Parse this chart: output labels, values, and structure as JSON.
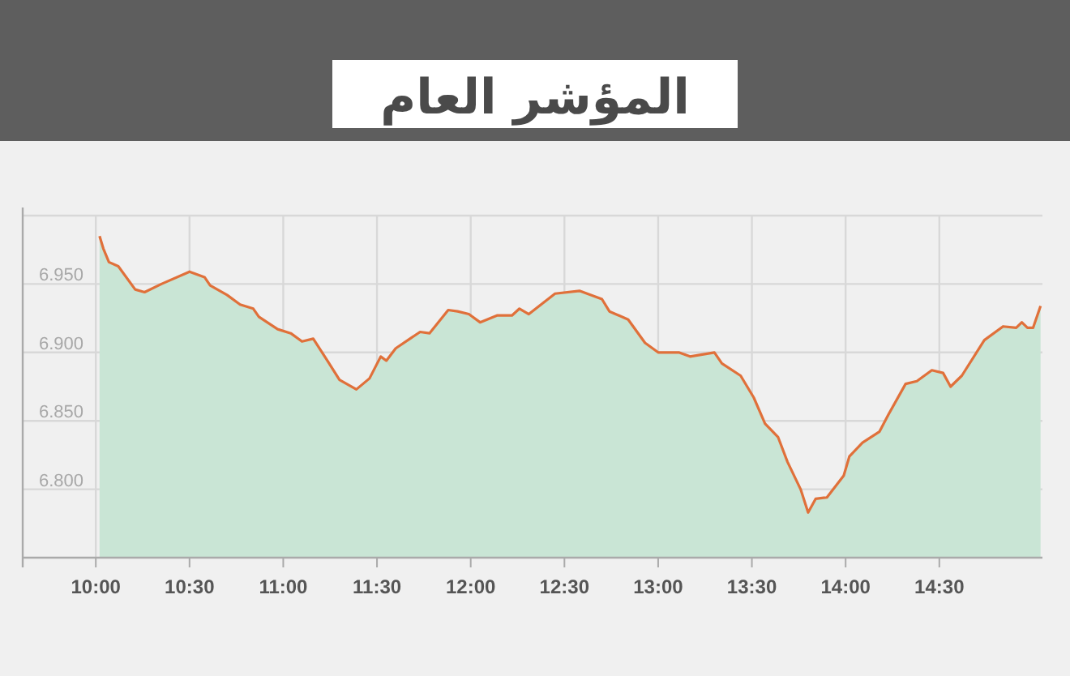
{
  "chart_data": {
    "type": "area",
    "title": "المؤشر العام",
    "x": [
      10.02,
      10.04,
      10.07,
      10.12,
      10.21,
      10.26,
      10.35,
      10.5,
      10.58,
      10.61,
      10.7,
      10.77,
      10.84,
      10.87,
      10.97,
      11.04,
      11.1,
      11.16,
      11.24,
      11.3,
      11.39,
      11.46,
      11.52,
      11.55,
      11.6,
      11.73,
      11.78,
      11.88,
      11.93,
      11.99,
      12.05,
      12.14,
      12.22,
      12.26,
      12.31,
      12.45,
      12.58,
      12.7,
      12.74,
      12.84,
      12.93,
      13.0,
      13.11,
      13.17,
      13.3,
      13.34,
      13.44,
      13.51,
      13.57,
      13.64,
      13.69,
      13.76,
      13.8,
      13.84,
      13.9,
      13.99,
      14.02,
      14.09,
      14.18,
      14.23,
      14.32,
      14.38,
      14.46,
      14.52,
      14.56,
      14.62,
      14.74,
      14.84,
      14.91,
      14.94,
      14.97,
      15.0,
      15.04
    ],
    "values": [
      6985,
      6976,
      6966,
      6963,
      6946,
      6944,
      6950,
      6959,
      6955,
      6949,
      6942,
      6935,
      6932,
      6926,
      6917,
      6914,
      6908,
      6910,
      6893,
      6880,
      6873,
      6881,
      6897,
      6894,
      6903,
      6915,
      6914,
      6931,
      6930,
      6928,
      6922,
      6927,
      6927,
      6932,
      6928,
      6943,
      6945,
      6939,
      6930,
      6924,
      6907,
      6900,
      6900,
      6897,
      6900,
      6892,
      6883,
      6867,
      6848,
      6838,
      6820,
      6800,
      6783,
      6793,
      6794,
      6810,
      6824,
      6834,
      6842,
      6855,
      6877,
      6879,
      6887,
      6885,
      6875,
      6883,
      6909,
      6919,
      6918,
      6922,
      6918,
      6918,
      6934
    ],
    "color": "#e0703a",
    "xlim": [
      9.61,
      15.05
    ],
    "ylim": [
      6750,
      7000
    ],
    "xticks": [
      {
        "value": 10,
        "label": "10:00"
      },
      {
        "value": 10.5,
        "label": "10:30"
      },
      {
        "value": 11,
        "label": "11:00"
      },
      {
        "value": 11.5,
        "label": "11:30"
      },
      {
        "value": 12,
        "label": "12:00"
      },
      {
        "value": 12.5,
        "label": "12:30"
      },
      {
        "value": 13,
        "label": "13:00"
      },
      {
        "value": 13.5,
        "label": "13:30"
      },
      {
        "value": 14,
        "label": "14:00"
      },
      {
        "value": 14.5,
        "label": "14:30"
      }
    ],
    "yticks": [
      {
        "value": 6800,
        "label": "6.800"
      },
      {
        "value": 6850,
        "label": "6.850"
      },
      {
        "value": 6900,
        "label": "6.900"
      },
      {
        "value": 6950,
        "label": "6.950"
      },
      {
        "value": 7000,
        "label": null
      }
    ],
    "grid": true,
    "marker": "none"
  }
}
